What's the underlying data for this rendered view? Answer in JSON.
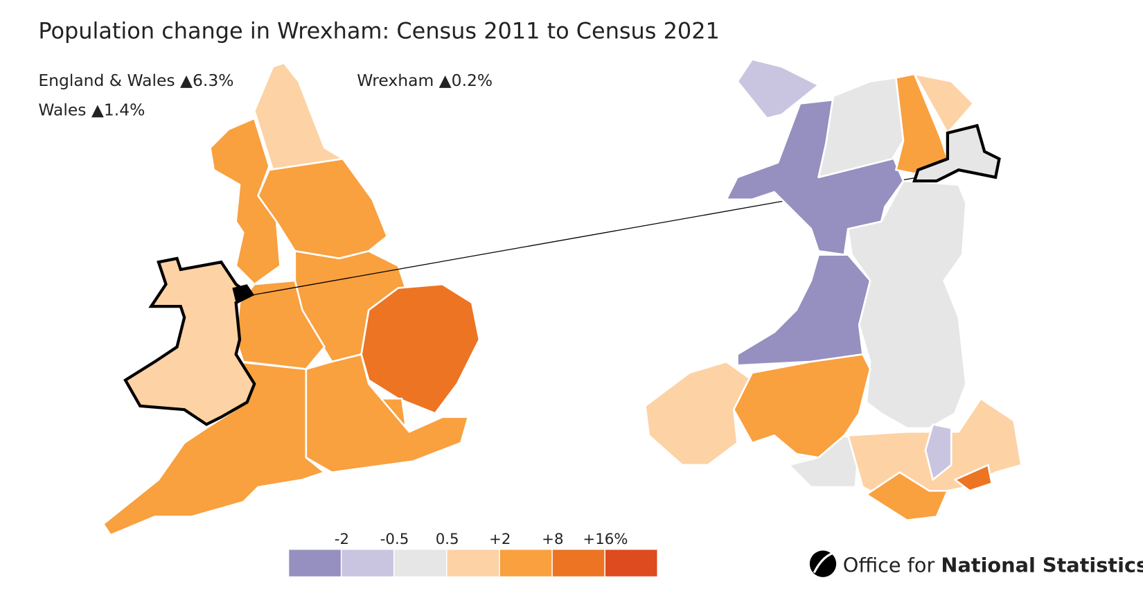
{
  "header": {
    "title": "Population change in Wrexham: Census 2011 to Census 2021"
  },
  "stats": [
    "England & Wales ▲6.3%",
    "Wales ▲1.4%",
    "Wrexham ▲0.2%"
  ],
  "legend": {
    "labels": [
      "-2",
      "-0.5",
      "0.5",
      "+2",
      "+8",
      "+16%"
    ],
    "colors": [
      "#9590bf",
      "#c9c5e0",
      "#e6e6e6",
      "#fdd2a5",
      "#f9a03f",
      "#ec7423",
      "#dd4b1f"
    ]
  },
  "logo": {
    "text": "Office for",
    "bold": "National Statistics"
  }
}
